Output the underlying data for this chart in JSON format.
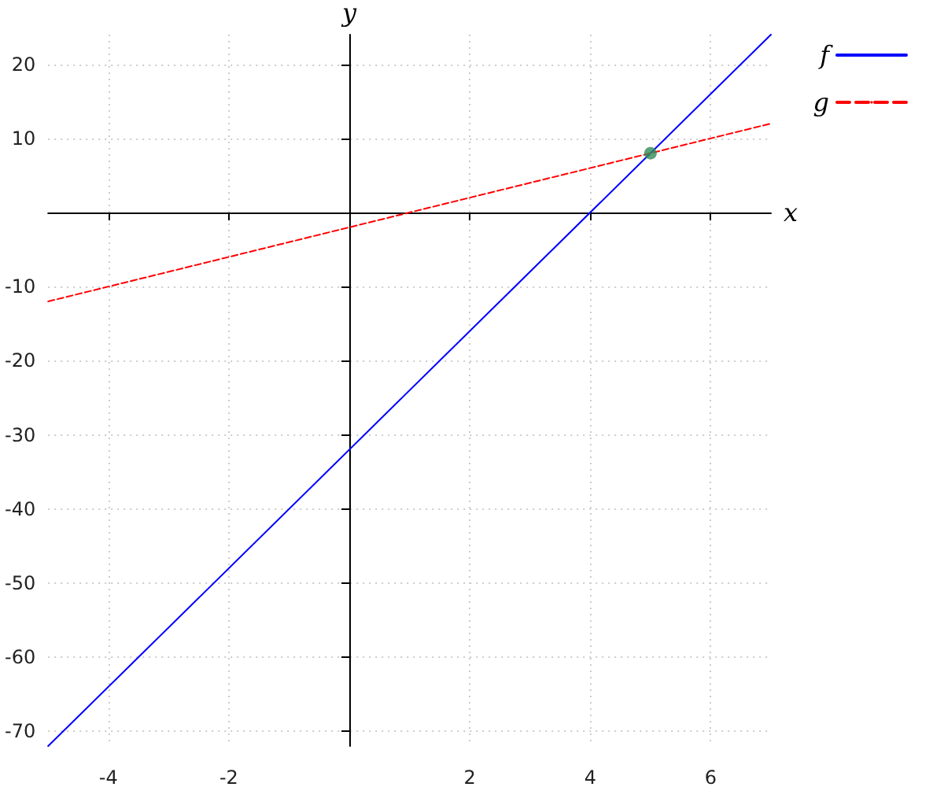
{
  "chart_data": {
    "type": "line",
    "xlabel": "x",
    "ylabel": "y",
    "series": [
      {
        "name": "f",
        "color": "#0000ff",
        "x": [
          -5,
          7
        ],
        "values": [
          -72,
          24
        ],
        "line_style": "solid"
      },
      {
        "name": "g",
        "color": "#ff0000",
        "x": [
          -5,
          7
        ],
        "values": [
          -12,
          12
        ],
        "line_style": "dashed"
      },
      {
        "type": "scatter",
        "color": "#2e8b57",
        "x": [
          5
        ],
        "values": [
          8
        ],
        "marker": "circle"
      }
    ],
    "xlim": [
      -5,
      7
    ],
    "xticks": [
      -4,
      -2,
      2,
      4,
      6
    ],
    "ylim": [
      -72,
      24
    ],
    "yticks": [
      -70,
      -60,
      -50,
      -40,
      -30,
      -20,
      -10,
      10,
      20
    ],
    "grid": true,
    "legend": "top right",
    "marker": "none"
  }
}
